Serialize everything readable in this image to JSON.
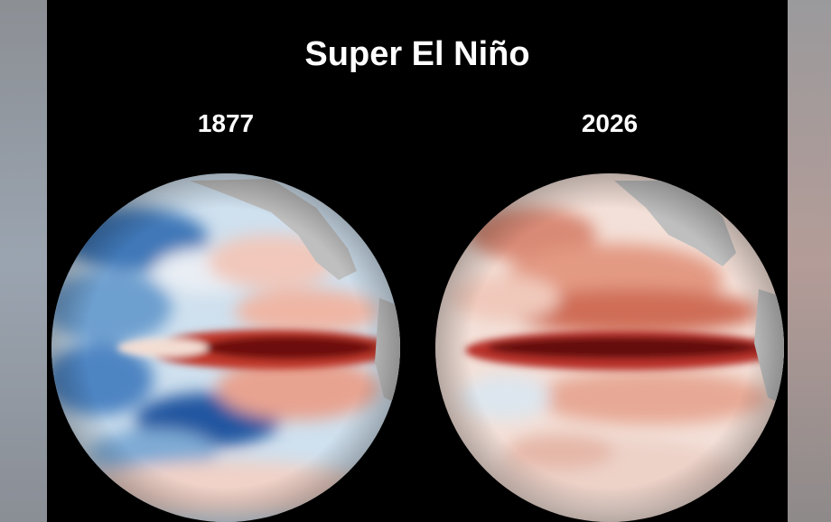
{
  "title": "Super El Niño",
  "panels": [
    {
      "label": "1877"
    },
    {
      "label": "2026"
    }
  ]
}
